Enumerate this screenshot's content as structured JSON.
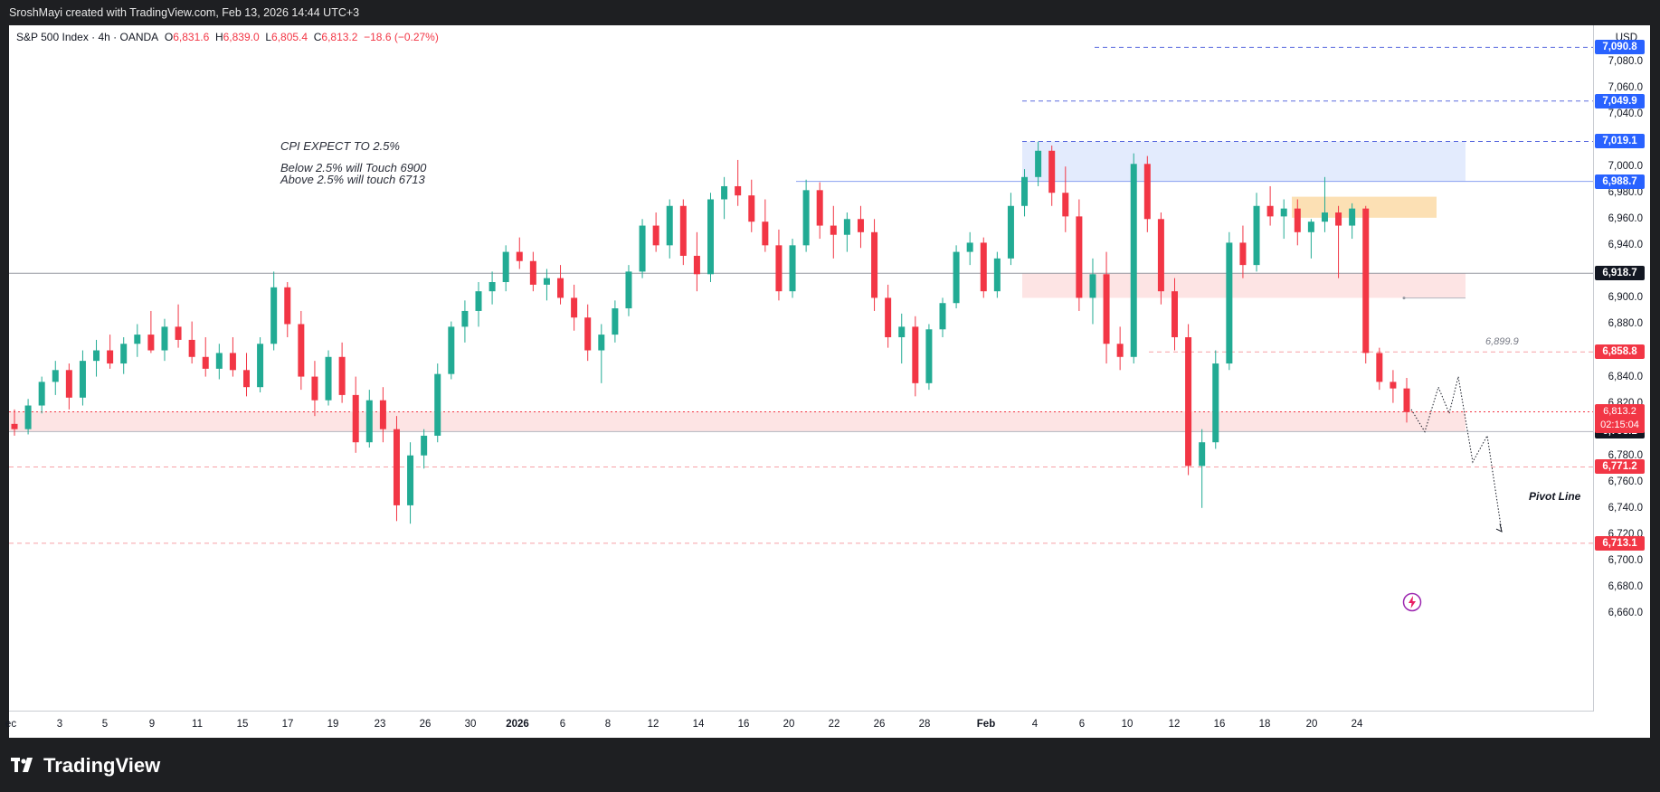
{
  "header": {
    "caption": "SroshMayi created with TradingView.com, Feb 13, 2026 14:44 UTC+3"
  },
  "legend": {
    "symbol": "S&P 500 Index · 4h · OANDA",
    "o_label": "O",
    "o": "6,831.6",
    "h_label": "H",
    "h": "6,839.0",
    "l_label": "L",
    "l": "6,805.4",
    "c_label": "C",
    "c": "6,813.2",
    "change": "−18.6 (−0.27%)"
  },
  "annotations": {
    "line1": "CPI EXPECT TO 2.5%",
    "line2": "Below 2.5% will Touch 6900",
    "line3": "Above 2.5% will touch 6713",
    "pivot": "Pivot Line",
    "level_label": "6,899.9"
  },
  "yaxis": {
    "currency": "USD",
    "ticks": [
      "7,080.0",
      "7,060.0",
      "7,040.0",
      "7,000.0",
      "6,980.0",
      "6,960.0",
      "6,940.0",
      "6,900.0",
      "6,880.0",
      "6,860.0",
      "6,840.0",
      "6,820.0",
      "6,780.0",
      "6,760.0",
      "6,740.0",
      "6,720.0",
      "6,700.0",
      "6,680.0",
      "6,660.0"
    ],
    "badges": [
      {
        "label": "7,090.8",
        "value": 7090.8,
        "color": "#2962ff"
      },
      {
        "label": "7,049.9",
        "value": 7049.9,
        "color": "#2962ff"
      },
      {
        "label": "7,019.1",
        "value": 7019.1,
        "color": "#2962ff"
      },
      {
        "label": "6,988.7",
        "value": 6988.7,
        "color": "#2962ff"
      },
      {
        "label": "6,918.7",
        "value": 6918.7,
        "color": "#131722"
      },
      {
        "label": "6,858.8",
        "value": 6858.8,
        "color": "#f23645"
      },
      {
        "label": "6,798.1",
        "value": 6798.1,
        "color": "#131722"
      },
      {
        "label": "6,771.2",
        "value": 6771.2,
        "color": "#f23645"
      },
      {
        "label": "6,713.1",
        "value": 6713.1,
        "color": "#f23645"
      }
    ],
    "current": {
      "price": "6,813.2",
      "countdown": "02:15:04",
      "value": 6813.2
    }
  },
  "xaxis": {
    "ticks": [
      "ec",
      "3",
      "5",
      "9",
      "11",
      "15",
      "17",
      "19",
      "23",
      "26",
      "30",
      "2026",
      "6",
      "8",
      "12",
      "14",
      "16",
      "20",
      "22",
      "26",
      "28",
      "Feb",
      "4",
      "6",
      "10",
      "12",
      "16",
      "18",
      "20",
      "24"
    ]
  },
  "footer": {
    "brand": "TradingView"
  },
  "colors": {
    "up": "#22ab94",
    "down": "#f23645",
    "resistance_zone": "#e3ebfd",
    "supply_zone": "#fce0b4",
    "demand_zone": "#fde4e4"
  },
  "chart_data": {
    "type": "candlestick",
    "title": "S&P 500 Index · 4h · OANDA",
    "ylabel": "USD",
    "ylim": [
      6650,
      7100
    ],
    "ohlc": [
      [
        6804,
        6815,
        6795,
        6800
      ],
      [
        6800,
        6823,
        6796,
        6818
      ],
      [
        6818,
        6840,
        6812,
        6836
      ],
      [
        6836,
        6852,
        6826,
        6845
      ],
      [
        6845,
        6850,
        6815,
        6824
      ],
      [
        6824,
        6860,
        6818,
        6852
      ],
      [
        6852,
        6868,
        6840,
        6860
      ],
      [
        6860,
        6872,
        6846,
        6850
      ],
      [
        6850,
        6870,
        6842,
        6865
      ],
      [
        6865,
        6880,
        6855,
        6872
      ],
      [
        6872,
        6890,
        6858,
        6860
      ],
      [
        6860,
        6884,
        6852,
        6878
      ],
      [
        6878,
        6895,
        6862,
        6868
      ],
      [
        6868,
        6882,
        6850,
        6855
      ],
      [
        6855,
        6870,
        6840,
        6846
      ],
      [
        6846,
        6865,
        6838,
        6858
      ],
      [
        6858,
        6870,
        6840,
        6845
      ],
      [
        6845,
        6858,
        6825,
        6832
      ],
      [
        6832,
        6870,
        6828,
        6865
      ],
      [
        6865,
        6920,
        6860,
        6908
      ],
      [
        6908,
        6912,
        6870,
        6880
      ],
      [
        6880,
        6890,
        6830,
        6840
      ],
      [
        6840,
        6852,
        6810,
        6822
      ],
      [
        6822,
        6860,
        6818,
        6855
      ],
      [
        6855,
        6866,
        6820,
        6826
      ],
      [
        6826,
        6840,
        6782,
        6790
      ],
      [
        6790,
        6830,
        6786,
        6822
      ],
      [
        6822,
        6832,
        6790,
        6800
      ],
      [
        6800,
        6810,
        6730,
        6742
      ],
      [
        6742,
        6790,
        6728,
        6780
      ],
      [
        6780,
        6800,
        6770,
        6795
      ],
      [
        6795,
        6850,
        6790,
        6842
      ],
      [
        6842,
        6882,
        6838,
        6878
      ],
      [
        6878,
        6898,
        6866,
        6890
      ],
      [
        6890,
        6912,
        6878,
        6905
      ],
      [
        6905,
        6920,
        6895,
        6912
      ],
      [
        6912,
        6940,
        6905,
        6935
      ],
      [
        6935,
        6946,
        6922,
        6928
      ],
      [
        6928,
        6935,
        6905,
        6910
      ],
      [
        6910,
        6922,
        6898,
        6915
      ],
      [
        6915,
        6925,
        6895,
        6900
      ],
      [
        6900,
        6910,
        6875,
        6885
      ],
      [
        6885,
        6895,
        6852,
        6860
      ],
      [
        6860,
        6880,
        6835,
        6872
      ],
      [
        6872,
        6898,
        6866,
        6892
      ],
      [
        6892,
        6925,
        6886,
        6920
      ],
      [
        6920,
        6960,
        6915,
        6955
      ],
      [
        6955,
        6965,
        6935,
        6940
      ],
      [
        6940,
        6975,
        6930,
        6970
      ],
      [
        6970,
        6975,
        6925,
        6932
      ],
      [
        6932,
        6950,
        6905,
        6918
      ],
      [
        6918,
        6980,
        6912,
        6975
      ],
      [
        6975,
        6992,
        6960,
        6985
      ],
      [
        6985,
        7005,
        6970,
        6978
      ],
      [
        6978,
        6990,
        6950,
        6958
      ],
      [
        6958,
        6975,
        6935,
        6940
      ],
      [
        6940,
        6952,
        6898,
        6905
      ],
      [
        6905,
        6945,
        6900,
        6940
      ],
      [
        6940,
        6990,
        6935,
        6982
      ],
      [
        6982,
        6988,
        6945,
        6955
      ],
      [
        6955,
        6970,
        6930,
        6948
      ],
      [
        6948,
        6965,
        6935,
        6960
      ],
      [
        6960,
        6970,
        6938,
        6950
      ],
      [
        6950,
        6960,
        6890,
        6900
      ],
      [
        6900,
        6910,
        6862,
        6870
      ],
      [
        6870,
        6888,
        6850,
        6878
      ],
      [
        6878,
        6886,
        6825,
        6835
      ],
      [
        6835,
        6880,
        6830,
        6876
      ],
      [
        6876,
        6900,
        6870,
        6896
      ],
      [
        6896,
        6940,
        6892,
        6935
      ],
      [
        6935,
        6950,
        6925,
        6942
      ],
      [
        6942,
        6946,
        6900,
        6905
      ],
      [
        6905,
        6935,
        6900,
        6930
      ],
      [
        6930,
        6980,
        6925,
        6970
      ],
      [
        6970,
        6998,
        6962,
        6992
      ],
      [
        6992,
        7019,
        6985,
        7012
      ],
      [
        7012,
        7016,
        6970,
        6980
      ],
      [
        6980,
        7000,
        6950,
        6962
      ],
      [
        6962,
        6975,
        6890,
        6900
      ],
      [
        6900,
        6930,
        6880,
        6918
      ],
      [
        6918,
        6935,
        6850,
        6865
      ],
      [
        6865,
        6878,
        6845,
        6855
      ],
      [
        6855,
        7010,
        6850,
        7002
      ],
      [
        7002,
        7008,
        6950,
        6960
      ],
      [
        6960,
        6965,
        6895,
        6905
      ],
      [
        6905,
        6915,
        6860,
        6870
      ],
      [
        6870,
        6880,
        6765,
        6772
      ],
      [
        6772,
        6800,
        6740,
        6790
      ],
      [
        6790,
        6860,
        6785,
        6850
      ],
      [
        6850,
        6950,
        6845,
        6942
      ],
      [
        6942,
        6955,
        6915,
        6925
      ],
      [
        6925,
        6980,
        6920,
        6970
      ],
      [
        6970,
        6985,
        6955,
        6962
      ],
      [
        6962,
        6975,
        6945,
        6968
      ],
      [
        6968,
        6975,
        6940,
        6950
      ],
      [
        6950,
        6960,
        6930,
        6958
      ],
      [
        6958,
        6992,
        6950,
        6965
      ],
      [
        6965,
        6970,
        6915,
        6955
      ],
      [
        6955,
        6972,
        6945,
        6968
      ],
      [
        6968,
        6970,
        6850,
        6858
      ],
      [
        6858,
        6862,
        6830,
        6836
      ],
      [
        6836,
        6845,
        6820,
        6831
      ],
      [
        6831,
        6839,
        6805,
        6813
      ]
    ]
  }
}
